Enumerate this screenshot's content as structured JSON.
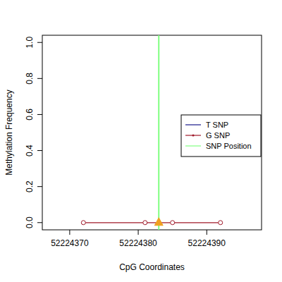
{
  "chart_data": {
    "type": "line",
    "x_label": "CpG Coordinates",
    "y_label": "Methylation Frequency",
    "xlim": [
      52224366,
      52224398
    ],
    "xticks": [
      52224370,
      52224380,
      52224390
    ],
    "ylim": [
      -0.04,
      1.04
    ],
    "yticks": [
      {
        "value": 0,
        "label": "0.0"
      },
      0.2,
      0.4,
      0.6,
      0.8,
      {
        "value": 1,
        "label": "1.0"
      }
    ],
    "legend": "right",
    "series": [
      {
        "name": "T SNP",
        "color": "#1a1a8b",
        "x": [],
        "values": []
      },
      {
        "name": "G SNP",
        "color": "#a01a2a",
        "marker": "circle",
        "x": [
          52224372,
          52224381,
          52224385,
          52224392
        ],
        "values": [
          0,
          0,
          0,
          0
        ]
      },
      {
        "name": "SNP Position",
        "color": "#80ff80",
        "type": "vline",
        "marker": "triangle",
        "x": [
          52224383
        ],
        "values": [
          0
        ]
      }
    ]
  }
}
